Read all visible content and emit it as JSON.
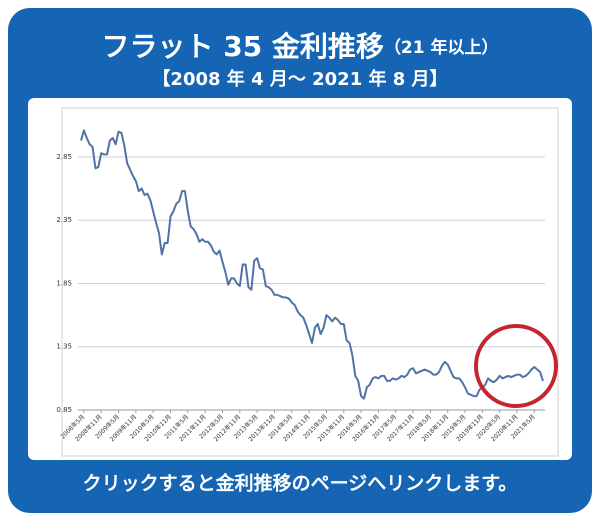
{
  "chart_data": {
    "type": "line",
    "title": "フラット 35 金利推移",
    "title_note": "（21 年以上）",
    "subtitle": "【2008 年 4 月～ 2021 年 8 月】",
    "footer": "クリックすると金利推移のページへリンクします。",
    "categories": [
      null,
      "2008年5月",
      null,
      null,
      null,
      null,
      null,
      "2008年11月",
      null,
      null,
      null,
      null,
      null,
      "2009年5月",
      null,
      null,
      null,
      null,
      null,
      "2009年11月",
      null,
      null,
      null,
      null,
      null,
      "2010年5月",
      null,
      null,
      null,
      null,
      null,
      "2010年11月",
      null,
      null,
      null,
      null,
      null,
      "2011年5月",
      null,
      null,
      null,
      null,
      null,
      "2011年11月",
      null,
      null,
      null,
      null,
      null,
      "2012年5月",
      null,
      null,
      null,
      null,
      null,
      "2012年11月",
      null,
      null,
      null,
      null,
      null,
      "2013年5月",
      null,
      null,
      null,
      null,
      null,
      "2013年11月",
      null,
      null,
      null,
      null,
      null,
      "2014年5月",
      null,
      null,
      null,
      null,
      null,
      "2014年11月",
      null,
      null,
      null,
      null,
      null,
      "2015年5月",
      null,
      null,
      null,
      null,
      null,
      "2015年11月",
      null,
      null,
      null,
      null,
      null,
      "2016年5月",
      null,
      null,
      null,
      null,
      null,
      "2016年11月",
      null,
      null,
      null,
      null,
      null,
      "2017年5月",
      null,
      null,
      null,
      null,
      null,
      "2017年11月",
      null,
      null,
      null,
      null,
      null,
      "2018年5月",
      null,
      null,
      null,
      null,
      null,
      "2018年11月",
      null,
      null,
      null,
      null,
      null,
      "2019年5月",
      null,
      null,
      null,
      null,
      null,
      "2019年11月",
      null,
      null,
      null,
      null,
      null,
      "2020年5月",
      null,
      null,
      null,
      null,
      null,
      "2020年11月",
      null,
      null,
      null,
      null,
      null,
      "2021年5月",
      null,
      null,
      null
    ],
    "values": [
      2.98,
      3.06,
      3.0,
      2.95,
      2.93,
      2.76,
      2.77,
      2.88,
      2.87,
      2.87,
      2.98,
      3.0,
      2.95,
      3.05,
      3.04,
      2.94,
      2.8,
      2.75,
      2.7,
      2.66,
      2.58,
      2.6,
      2.55,
      2.56,
      2.51,
      2.42,
      2.33,
      2.25,
      2.08,
      2.17,
      2.17,
      2.38,
      2.42,
      2.48,
      2.5,
      2.58,
      2.58,
      2.42,
      2.3,
      2.28,
      2.24,
      2.18,
      2.2,
      2.18,
      2.18,
      2.15,
      2.1,
      2.08,
      2.11,
      2.02,
      1.94,
      1.84,
      1.89,
      1.89,
      1.85,
      1.83,
      2.0,
      2.0,
      1.82,
      1.8,
      2.03,
      2.05,
      1.97,
      1.96,
      1.83,
      1.82,
      1.8,
      1.76,
      1.76,
      1.75,
      1.74,
      1.74,
      1.73,
      1.7,
      1.68,
      1.63,
      1.6,
      1.58,
      1.52,
      1.45,
      1.38,
      1.5,
      1.53,
      1.45,
      1.5,
      1.6,
      1.58,
      1.55,
      1.58,
      1.56,
      1.53,
      1.53,
      1.4,
      1.38,
      1.28,
      1.12,
      1.08,
      0.96,
      0.94,
      1.03,
      1.05,
      1.1,
      1.11,
      1.1,
      1.12,
      1.12,
      1.08,
      1.08,
      1.1,
      1.09,
      1.1,
      1.12,
      1.11,
      1.13,
      1.17,
      1.18,
      1.14,
      1.15,
      1.16,
      1.17,
      1.16,
      1.15,
      1.13,
      1.13,
      1.15,
      1.2,
      1.23,
      1.21,
      1.16,
      1.11,
      1.1,
      1.1,
      1.07,
      1.03,
      0.98,
      0.97,
      0.96,
      0.96,
      1.01,
      1.03,
      1.05,
      1.1,
      1.08,
      1.07,
      1.09,
      1.12,
      1.1,
      1.11,
      1.12,
      1.11,
      1.12,
      1.13,
      1.13,
      1.11,
      1.12,
      1.14,
      1.17,
      1.19,
      1.17,
      1.15,
      1.08
    ],
    "color": "#4f73a8",
    "ylim": [
      0.85,
      3.15
    ],
    "yticks": [
      0.85,
      1.35,
      1.85,
      2.35,
      2.85
    ],
    "grid": true
  }
}
